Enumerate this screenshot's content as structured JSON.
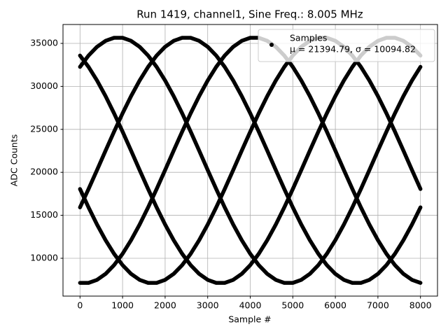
{
  "chart_data": {
    "type": "scatter",
    "title": "Run 1419, channel1, Sine Freq.: 8.005 MHz",
    "x_label": "Sample #",
    "y_label": "ADC Counts",
    "legend_text": "μ = 21394.79, σ = 10094.82",
    "legend_loc": "upper right",
    "grid": true,
    "xlim": [
      -400,
      8400
    ],
    "ylim": [
      5600,
      37200
    ],
    "xticks": [
      0,
      1000,
      2000,
      3000,
      4000,
      5000,
      6000,
      7000,
      8000
    ],
    "yticks": [
      10000,
      15000,
      20000,
      25000,
      30000,
      35000
    ],
    "x": [
      0,
      200,
      400,
      600,
      800,
      1000,
      1200,
      1400,
      1600,
      1800,
      2000,
      2200,
      2400,
      2600,
      2800,
      3000,
      3200,
      3400,
      3600,
      3800,
      4000,
      4200,
      4400,
      4600,
      4800,
      5000,
      5200,
      5400,
      5600,
      5800,
      6000,
      6200,
      6400,
      6600,
      6800,
      7000,
      7200,
      7400,
      7600,
      7800,
      8000
    ],
    "series": [
      {
        "name": "Samples",
        "color": "#000000",
        "values": [
          32269,
          33587,
          34607,
          35300,
          35651,
          35651,
          35300,
          34607,
          33587,
          32269,
          30681,
          28867,
          26868,
          24733,
          22517,
          20273,
          18057,
          15922,
          13923,
          12109,
          10521,
          9203,
          8183,
          7490,
          7139,
          7139,
          7490,
          8183,
          9203,
          10521,
          12109,
          13923,
          15922,
          18057,
          20273,
          22517,
          24733,
          26868,
          28867,
          30681,
          32269
        ]
      },
      {
        "color": "#000000",
        "values": [
          15922,
          18057,
          20273,
          22517,
          24733,
          26868,
          28867,
          30681,
          32269,
          33587,
          34607,
          35300,
          35651,
          35651,
          35300,
          34607,
          33587,
          32269,
          30681,
          28867,
          26868,
          24733,
          22517,
          20273,
          18057,
          15922,
          13923,
          12109,
          10521,
          9203,
          8183,
          7490,
          7139,
          7139,
          7490,
          8183,
          9203,
          10521,
          12109,
          13923,
          15922
        ]
      },
      {
        "color": "#000000",
        "values": [
          7139,
          7139,
          7490,
          8183,
          9203,
          10521,
          12109,
          13923,
          15922,
          18057,
          20273,
          22517,
          24733,
          26868,
          28867,
          30681,
          32269,
          33587,
          34607,
          35300,
          35651,
          35651,
          35300,
          34607,
          33587,
          32269,
          30681,
          28867,
          26868,
          24733,
          22517,
          20273,
          18057,
          15922,
          13923,
          12109,
          10521,
          9203,
          8183,
          7490,
          7139
        ]
      },
      {
        "color": "#000000",
        "values": [
          18057,
          15922,
          13923,
          12109,
          10521,
          9203,
          8183,
          7490,
          7139,
          7139,
          7490,
          8183,
          9203,
          10521,
          12109,
          13923,
          15922,
          18057,
          20273,
          22517,
          24733,
          26868,
          28867,
          30681,
          32269,
          33587,
          34607,
          35300,
          35651,
          35651,
          35300,
          34607,
          33587,
          32269,
          30681,
          28867,
          26868,
          24733,
          22517,
          20273,
          18057
        ]
      },
      {
        "color": "#000000",
        "values": [
          33587,
          32269,
          30681,
          28867,
          26868,
          24733,
          22517,
          20273,
          18057,
          15922,
          13923,
          12109,
          10521,
          9203,
          8183,
          7490,
          7139,
          7139,
          7490,
          8183,
          9203,
          10521,
          12109,
          13923,
          15922,
          18057,
          20273,
          22517,
          24733,
          26868,
          28867,
          30681,
          32269,
          33587,
          34607,
          35300,
          35651,
          35651,
          35300,
          34607,
          33587
        ]
      }
    ]
  }
}
